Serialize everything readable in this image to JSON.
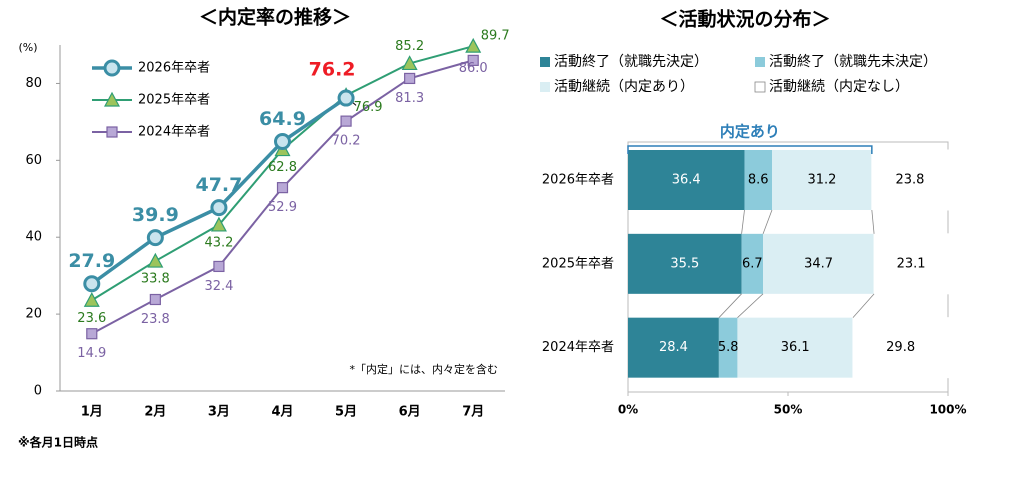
{
  "chart_data": [
    {
      "type": "line",
      "title": "＜内定率の推移＞",
      "y_label": "(%)",
      "categories": [
        "1月",
        "2月",
        "3月",
        "4月",
        "5月",
        "6月",
        "7月"
      ],
      "series": [
        {
          "name": "2026年卒者",
          "color": "#3b8ea5",
          "marker_fill": "#c9e4ee",
          "marker": "circle",
          "values": [
            27.9,
            39.9,
            47.7,
            64.9,
            76.2,
            null,
            null
          ]
        },
        {
          "name": "2025年卒者",
          "color": "#2f9e74",
          "marker_fill": "#9cc45c",
          "marker": "triangle",
          "values": [
            23.6,
            33.8,
            43.2,
            62.8,
            76.9,
            85.2,
            89.7
          ]
        },
        {
          "name": "2024年卒者",
          "color": "#7b62a3",
          "marker_fill": "#b8a8d6",
          "marker": "square",
          "values": [
            14.9,
            23.8,
            32.4,
            52.9,
            70.2,
            81.3,
            86.0
          ],
          "value_labels": [
            "14.9",
            "23.8",
            "32.4",
            "52.9",
            "70.2",
            "81.3",
            "86.0"
          ]
        }
      ],
      "highlight_color": "#ee1c25",
      "ylim": [
        0,
        90
      ],
      "yticks": [
        0,
        20,
        40,
        60,
        80
      ],
      "grid": false,
      "annotation": "*「内定」には、内々定を含む",
      "footnote": "※各月1日時点"
    },
    {
      "type": "stacked_barh",
      "title": "＜活動状況の分布＞",
      "categories": [
        "2026年卒者",
        "2025年卒者",
        "2024年卒者"
      ],
      "series": [
        {
          "name": "活動終了（就職先決定）",
          "color": "#2e8497",
          "values": [
            36.4,
            35.5,
            28.4
          ]
        },
        {
          "name": "活動終了（就職先未決定）",
          "color": "#8ccbdb",
          "values": [
            8.6,
            6.7,
            5.8
          ]
        },
        {
          "name": "活動継続（内定あり）",
          "color": "#daeef3",
          "values": [
            31.2,
            34.7,
            36.1
          ]
        },
        {
          "name": "活動継続（内定なし）",
          "color": "#ffffff",
          "values": [
            23.8,
            23.1,
            29.8
          ]
        }
      ],
      "xlim": [
        0,
        100
      ],
      "xticks": [
        {
          "value": 0,
          "label": "0%"
        },
        {
          "value": 50,
          "label": "50%"
        },
        {
          "value": 100,
          "label": "100%"
        }
      ],
      "annotation": "内定あり"
    }
  ]
}
